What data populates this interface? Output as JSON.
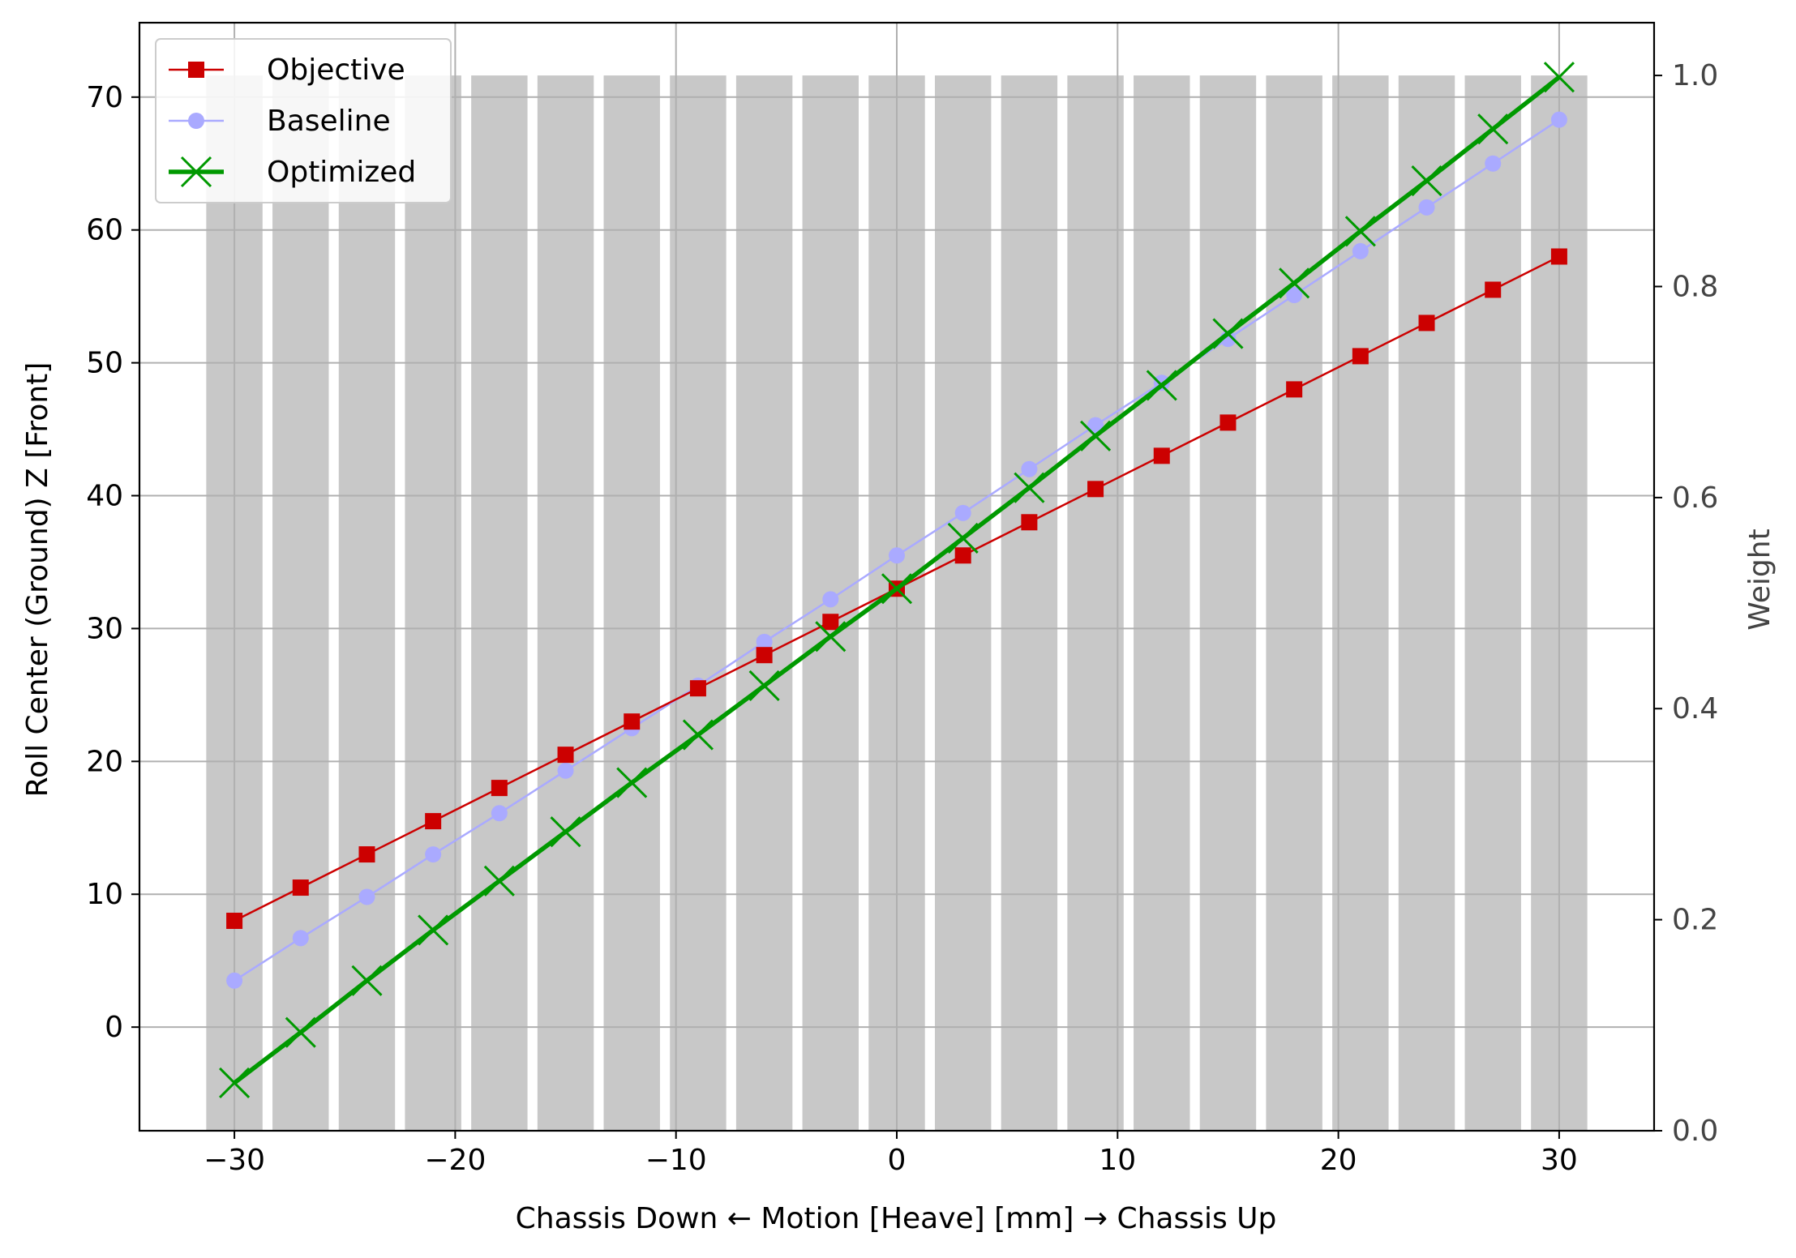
{
  "chart_data": {
    "type": "line",
    "xlabel": "Chassis Down ← Motion [Heave] [mm] → Chassis Up",
    "ylabel": "Roll Center (Ground) Z [Front]",
    "ylabel_right": "Weight",
    "xlim": [
      -34.3,
      34.3
    ],
    "ylim": [
      -7.8,
      75.6
    ],
    "ylim_right": [
      0.0,
      1.05
    ],
    "xticks": [
      -30,
      -20,
      -10,
      0,
      10,
      20,
      30
    ],
    "xtick_labels": [
      "−30",
      "−20",
      "−10",
      "0",
      "10",
      "20",
      "30"
    ],
    "yticks": [
      0,
      10,
      20,
      30,
      40,
      50,
      60,
      70
    ],
    "yticks_right": [
      0.0,
      0.2,
      0.4,
      0.6,
      0.8,
      1.0
    ],
    "ytick_labels_right": [
      "0.0",
      "0.2",
      "0.4",
      "0.6",
      "0.8",
      "1.0"
    ],
    "grid": true,
    "legend_position": "top-left",
    "x": [
      -30,
      -27,
      -24,
      -21,
      -18,
      -15,
      -12,
      -9,
      -6,
      -3,
      0,
      3,
      6,
      9,
      12,
      15,
      18,
      21,
      24,
      27,
      30
    ],
    "weights": [
      1,
      1,
      1,
      1,
      1,
      1,
      1,
      1,
      1,
      1,
      1,
      1,
      1,
      1,
      1,
      1,
      1,
      1,
      1,
      1,
      1
    ],
    "weight_bar_color": "#c8c8c8",
    "series": [
      {
        "name": "Objective",
        "color": "#cc0000",
        "marker": "square",
        "values": [
          8.0,
          10.5,
          13.0,
          15.5,
          18.0,
          20.5,
          23.0,
          25.5,
          28.0,
          30.5,
          33.0,
          35.5,
          38.0,
          40.5,
          43.0,
          45.5,
          48.0,
          50.5,
          53.0,
          55.5,
          58.0
        ]
      },
      {
        "name": "Baseline",
        "color": "#aaaaff",
        "marker": "circle",
        "values": [
          3.5,
          6.7,
          9.8,
          13.0,
          16.1,
          19.3,
          22.5,
          25.7,
          29.0,
          32.2,
          35.5,
          38.7,
          42.0,
          45.3,
          48.5,
          51.8,
          55.1,
          58.4,
          61.7,
          65.0,
          68.3
        ]
      },
      {
        "name": "Optimized",
        "color": "#009900",
        "marker": "x",
        "values": [
          -4.2,
          -0.4,
          3.5,
          7.3,
          11.0,
          14.7,
          18.4,
          22.0,
          25.7,
          29.4,
          33.0,
          36.8,
          40.6,
          44.5,
          48.3,
          52.2,
          56.0,
          59.9,
          63.7,
          67.6,
          71.5
        ]
      }
    ]
  }
}
